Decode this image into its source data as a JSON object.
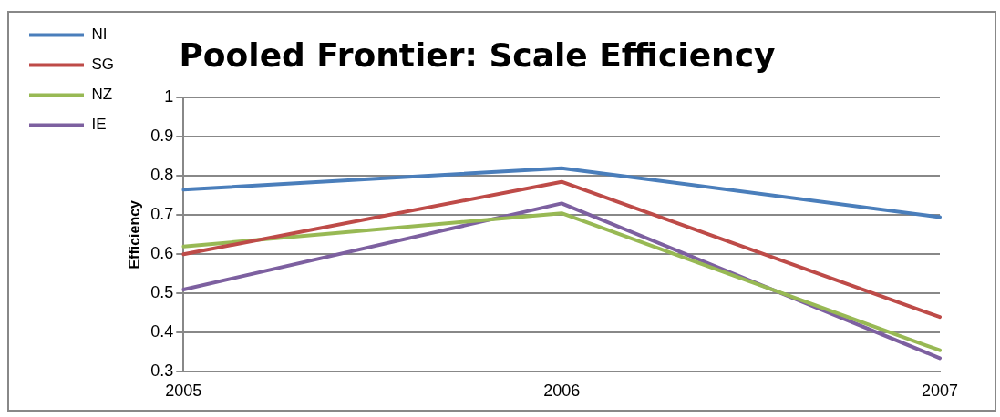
{
  "chart_data": {
    "type": "line",
    "title": "Pooled Frontier: Scale Efficiency",
    "ylabel": "Efficiency",
    "categories": [
      "2005",
      "2006",
      "2007"
    ],
    "series": [
      {
        "name": "NI",
        "color": "#4a7ebb",
        "values": [
          0.765,
          0.82,
          0.695
        ]
      },
      {
        "name": "SG",
        "color": "#be4b48",
        "values": [
          0.6,
          0.785,
          0.44
        ]
      },
      {
        "name": "NZ",
        "color": "#98b954",
        "values": [
          0.62,
          0.705,
          0.355
        ]
      },
      {
        "name": "IE",
        "color": "#7d60a0",
        "values": [
          0.51,
          0.73,
          0.335
        ]
      }
    ],
    "ylim": [
      0.3,
      1
    ],
    "yticks": [
      0.3,
      0.4,
      0.5,
      0.6,
      0.7,
      0.8,
      0.9,
      1
    ],
    "grid": "y",
    "legend": "top left",
    "marker": "none",
    "line_style": "solid"
  }
}
